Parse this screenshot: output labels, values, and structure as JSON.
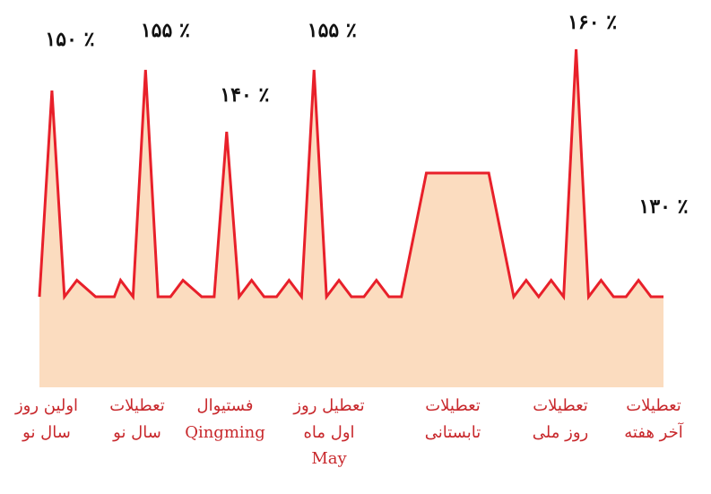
{
  "chart_data": {
    "type": "area",
    "colors": {
      "line": "#e8202a",
      "fill": "#fbdcbf",
      "labels": "#c8282c",
      "peak_labels": "#111111"
    },
    "x": [
      0,
      2,
      4,
      6,
      9,
      12,
      13,
      15,
      17,
      19,
      21,
      23,
      26,
      28,
      30,
      32,
      34,
      36,
      38,
      40,
      42,
      44,
      46,
      48,
      50,
      52,
      54,
      56,
      58,
      62,
      66,
      72,
      76,
      78,
      80,
      82,
      84,
      86,
      88,
      90,
      92,
      94,
      96,
      98,
      100
    ],
    "y": [
      100,
      150,
      100,
      104,
      100,
      100,
      104,
      100,
      155,
      100,
      100,
      104,
      100,
      100,
      140,
      100,
      104,
      100,
      100,
      104,
      100,
      155,
      100,
      104,
      100,
      100,
      104,
      100,
      100,
      130,
      130,
      130,
      100,
      104,
      100,
      104,
      100,
      160,
      100,
      104,
      100,
      100,
      104,
      100,
      100
    ],
    "ylim": [
      75,
      165
    ],
    "peak_labels": [
      {
        "x": 2,
        "y": 150,
        "text": "١۵٠ ٪"
      },
      {
        "x": 17,
        "y": 155,
        "text": "١۵۵ ٪"
      },
      {
        "x": 30,
        "y": 140,
        "text": "١۴٠ ٪"
      },
      {
        "x": 44,
        "y": 155,
        "text": "١۵۵ ٪"
      },
      {
        "x": 86,
        "y": 160,
        "text": "١۶٠ ٪"
      },
      {
        "x": 100,
        "y": 104,
        "text": "١٣٠ ٪"
      }
    ],
    "categories": [
      {
        "id": "first-day-new-year",
        "lines": [
          "اولین روز",
          "سال نو"
        ]
      },
      {
        "id": "new-year-holidays",
        "lines": [
          "تعطیلات",
          "سال نو"
        ]
      },
      {
        "id": "qingming-festival",
        "lines": [
          "فستیوال",
          "Qingming"
        ]
      },
      {
        "id": "may-day-holiday",
        "lines": [
          "تعطیل روز",
          "اول ماه",
          "May"
        ]
      },
      {
        "id": "summer-holidays",
        "lines": [
          "تعطیلات",
          "تابستانی"
        ]
      },
      {
        "id": "national-day-holidays",
        "lines": [
          "تعطیلات",
          "روز ملی"
        ]
      },
      {
        "id": "weekend-holidays",
        "lines": [
          "تعطیلات",
          "آخر هفته"
        ]
      }
    ]
  }
}
